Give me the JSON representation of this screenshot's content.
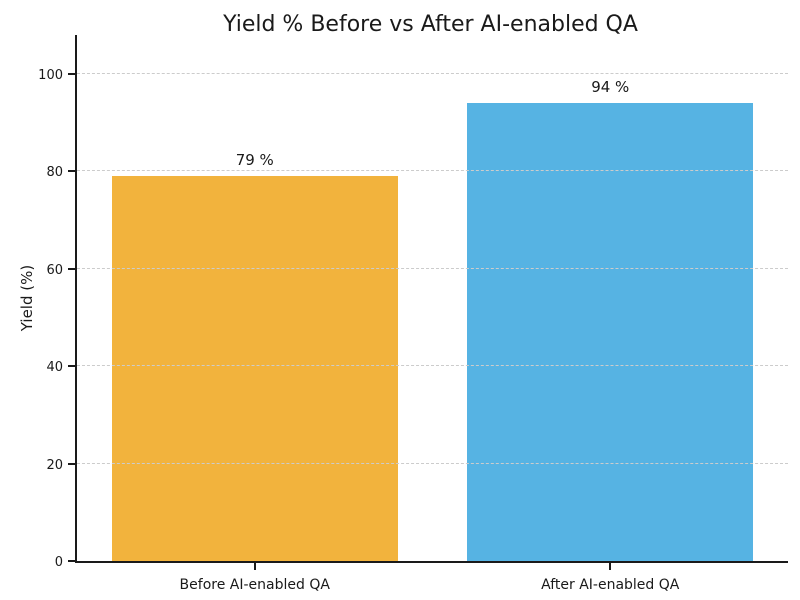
{
  "chart_data": {
    "type": "bar",
    "title": "Yield % Before vs After AI-enabled QA",
    "categories": [
      "Before AI-enabled QA",
      "After AI-enabled QA"
    ],
    "values": [
      79,
      94
    ],
    "bar_labels": [
      "79 %",
      "94 %"
    ],
    "bar_colors": [
      "#F2B33D",
      "#56B3E3"
    ],
    "xlabel": "",
    "ylabel": "Yield (%)",
    "yticks": [
      0,
      20,
      40,
      60,
      80,
      100
    ],
    "ylim": [
      0,
      108
    ],
    "grid": "horizontal dashed gridlines at y-ticks",
    "legend": "none",
    "grid_color": "#cccccc",
    "axis_color": "#1a1a1a",
    "text_color": "#1a1a1a",
    "background_color": "#ffffff"
  }
}
